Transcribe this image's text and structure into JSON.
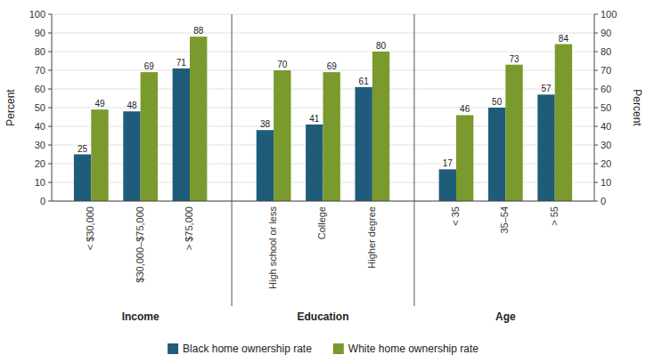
{
  "chart_data": {
    "type": "bar",
    "ylabel": "Percent",
    "y2label": "Percent",
    "groups": [
      {
        "label": "Income",
        "categories": [
          "< $30,000",
          "$30,000–$75,000",
          "> $75,000"
        ]
      },
      {
        "label": "Education",
        "categories": [
          "High school or less",
          "College",
          "Higher degree"
        ]
      },
      {
        "label": "Age",
        "categories": [
          "< 35",
          "35–54",
          "> 55"
        ]
      }
    ],
    "series": [
      {
        "name": "Black home ownership rate",
        "color": "#1F5C7A",
        "values": [
          25,
          48,
          71,
          38,
          41,
          61,
          17,
          50,
          57
        ]
      },
      {
        "name": "White home ownership rate",
        "color": "#7A9A2E",
        "values": [
          49,
          69,
          88,
          70,
          69,
          80,
          46,
          73,
          84
        ]
      }
    ],
    "ylim": [
      0,
      100
    ],
    "yticks": [
      0,
      10,
      20,
      30,
      40,
      50,
      60,
      70,
      80,
      90,
      100
    ],
    "y2lim": [
      0,
      100
    ],
    "y2ticks": [
      0,
      10,
      20,
      30,
      40,
      50,
      60,
      70,
      80,
      90,
      100
    ],
    "grid": true,
    "data_labels": true,
    "legend": "bottom"
  }
}
